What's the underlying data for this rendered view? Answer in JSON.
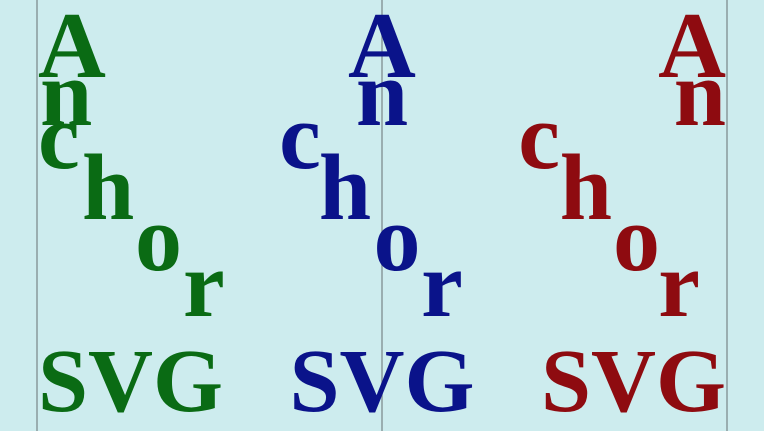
{
  "colors": {
    "background": "#cdecee",
    "guide": "#8a9a9c",
    "green": "#0a6b14",
    "blue": "#0a138a",
    "red": "#8e0b10"
  },
  "groups": [
    {
      "name": "left",
      "color_key": "green",
      "letters": [
        "A",
        "n",
        "c",
        "h",
        "o",
        "r"
      ],
      "svg_label": "SVG"
    },
    {
      "name": "center",
      "color_key": "blue",
      "letters": [
        "A",
        "n",
        "c",
        "h",
        "o",
        "r"
      ],
      "svg_label": "SVG"
    },
    {
      "name": "right",
      "color_key": "red",
      "letters": [
        "A",
        "n",
        "c",
        "h",
        "o",
        "r"
      ],
      "svg_label": "SVG"
    }
  ]
}
